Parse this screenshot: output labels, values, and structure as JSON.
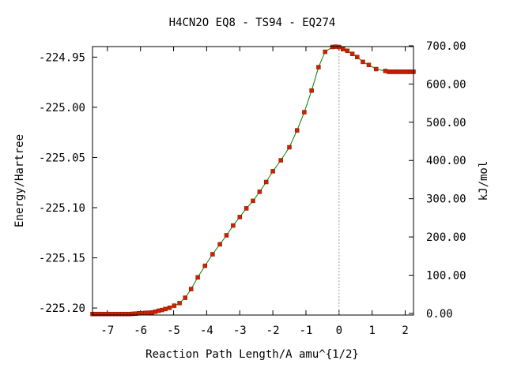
{
  "chart_data": {
    "type": "line",
    "title": "H4CN2O   EQ8 - TS94 - EQ274",
    "xlabel": "Reaction Path Length/A amu^{1/2}",
    "ylabel": "Energy/Hartree",
    "y2label": "kJ/mol",
    "xlim": [
      -7.45,
      2.25
    ],
    "ylim": [
      -225.207,
      -224.9395
    ],
    "y2lim": [
      -4.3,
      697.9
    ],
    "x_ticks": [
      -7,
      -6,
      -5,
      -4,
      -3,
      -2,
      -1,
      0,
      1,
      2
    ],
    "x_tick_labels": [
      "-7",
      "-6",
      "-5",
      "-4",
      "-3",
      "-2",
      "-1",
      "0",
      "1",
      "2"
    ],
    "y_ticks": [
      -224.95,
      -225.0,
      -225.05,
      -225.1,
      -225.15,
      -225.2
    ],
    "y_tick_labels": [
      "-224.95",
      "-225.00",
      "-225.05",
      "-225.10",
      "-225.15",
      "-225.20"
    ],
    "y2_ticks": [
      700,
      600,
      500,
      400,
      300,
      200,
      100,
      0
    ],
    "y2_tick_labels": [
      "700.00",
      "600.00",
      "500.00",
      "400.00",
      "300.00",
      "200.00",
      "100.00",
      "0.00"
    ],
    "ts_x": 0.0,
    "line_color": "#008000",
    "marker_color": "#cc2200",
    "ts_line_color": "#999999",
    "grid": false,
    "x": [
      -7.45,
      -7.35,
      -7.25,
      -7.15,
      -7.05,
      -6.95,
      -6.85,
      -6.75,
      -6.65,
      -6.55,
      -6.45,
      -6.35,
      -6.25,
      -6.15,
      -6.05,
      -5.95,
      -5.85,
      -5.75,
      -5.65,
      -5.55,
      -5.45,
      -5.35,
      -5.25,
      -5.12,
      -4.98,
      -4.82,
      -4.65,
      -4.47,
      -4.27,
      -4.05,
      -3.82,
      -3.6,
      -3.4,
      -3.2,
      -3.0,
      -2.8,
      -2.6,
      -2.4,
      -2.2,
      -2.0,
      -1.76,
      -1.5,
      -1.27,
      -1.05,
      -0.83,
      -0.62,
      -0.42,
      -0.2,
      -0.1,
      0.0,
      0.12,
      0.25,
      0.4,
      0.55,
      0.72,
      0.9,
      1.12,
      1.4,
      1.5,
      1.55,
      1.6,
      1.65,
      1.7,
      1.75,
      1.8,
      1.85,
      1.9,
      1.95,
      2.0,
      2.05,
      2.1,
      2.15,
      2.2,
      2.25
    ],
    "y": [
      -225.206,
      -225.206,
      -225.206,
      -225.206,
      -225.206,
      -225.206,
      -225.206,
      -225.206,
      -225.206,
      -225.206,
      -225.206,
      -225.206,
      -225.2058,
      -225.2056,
      -225.2053,
      -225.2051,
      -225.2049,
      -225.2047,
      -225.2044,
      -225.2037,
      -225.2027,
      -225.202,
      -225.201,
      -225.1998,
      -225.1976,
      -225.1951,
      -225.1898,
      -225.1811,
      -225.1694,
      -225.1579,
      -225.1464,
      -225.1365,
      -225.1275,
      -225.1178,
      -225.1094,
      -225.1007,
      -225.0932,
      -225.0842,
      -225.0744,
      -225.0637,
      -225.0528,
      -225.0398,
      -225.023,
      -225.0049,
      -224.9833,
      -224.96,
      -224.9447,
      -224.9399,
      -224.9396,
      -224.9399,
      -224.9421,
      -224.9437,
      -224.9467,
      -224.9499,
      -224.9548,
      -224.9578,
      -224.9619,
      -224.9638,
      -224.9646,
      -224.9646,
      -224.9646,
      -224.9646,
      -224.9646,
      -224.9646,
      -224.9646,
      -224.9646,
      -224.9646,
      -224.9646,
      -224.9646,
      -224.9646,
      -224.9646,
      -224.9646,
      -224.9646,
      -224.9646
    ]
  }
}
